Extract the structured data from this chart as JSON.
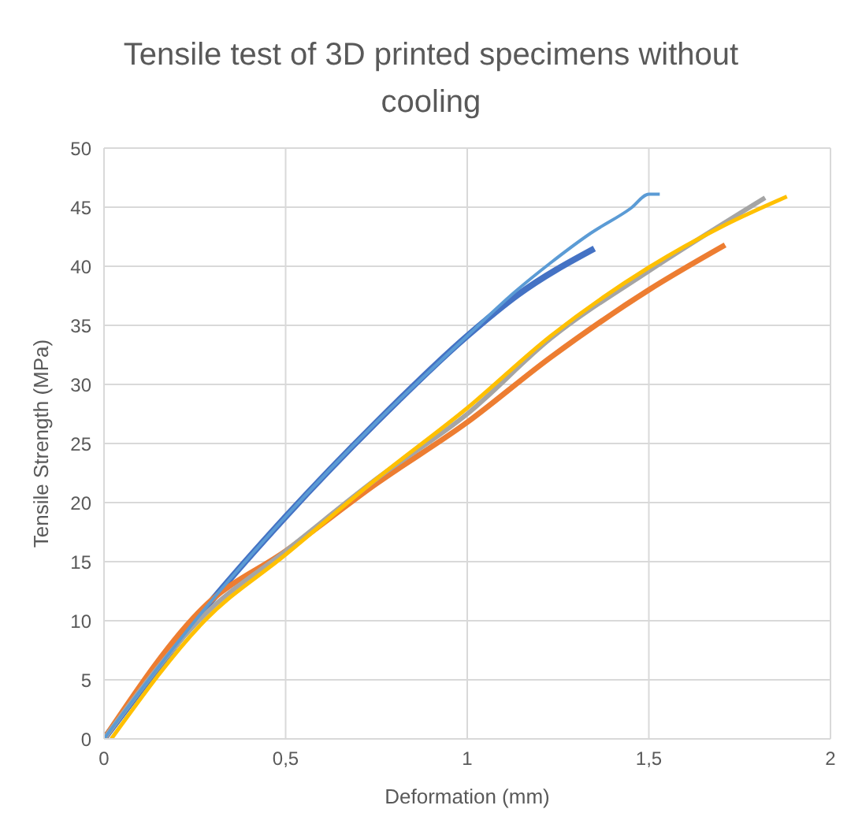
{
  "chart_data": {
    "type": "line",
    "title": "Tensile test of 3D printed specimens without cooling",
    "xlabel": "Deformation (mm)",
    "ylabel": "Tensile Strength (MPa)",
    "xlim": [
      0,
      2
    ],
    "xticks": [
      0,
      {
        "value": 0.5,
        "label": "0,5"
      },
      1,
      {
        "value": 1.5,
        "label": "1,5"
      },
      2
    ],
    "ylim": [
      0,
      50
    ],
    "yticks": [
      0,
      5,
      10,
      15,
      20,
      25,
      30,
      35,
      40,
      45,
      50
    ],
    "grid": true,
    "legend": false,
    "marker": "none",
    "line_style": "solid",
    "series": [
      {
        "color": "#4472c4",
        "x": [
          0,
          0.28,
          0.5,
          0.75,
          1.0,
          1.14,
          1.35
        ],
        "values": [
          0,
          11.1,
          18.8,
          26.8,
          34.1,
          37.6,
          41.5
        ]
      },
      {
        "color": "#ed7d31",
        "x": [
          0,
          0.28,
          0.5,
          0.75,
          1.0,
          1.23,
          1.5,
          1.71
        ],
        "values": [
          0,
          11.3,
          15.9,
          21.6,
          26.8,
          32.3,
          38.0,
          41.8
        ]
      },
      {
        "color": "#a5a5a5",
        "x": [
          0,
          0.28,
          0.5,
          0.75,
          1.0,
          1.23,
          1.5,
          1.82
        ],
        "values": [
          0,
          10.6,
          15.9,
          22.0,
          27.5,
          33.9,
          39.6,
          45.8
        ]
      },
      {
        "color": "#ffc000",
        "x": [
          0.02,
          0.28,
          0.5,
          0.75,
          1.0,
          1.23,
          1.5,
          1.71,
          1.88
        ],
        "values": [
          0,
          10.1,
          15.6,
          22.0,
          28.0,
          34.1,
          39.9,
          43.5,
          45.9
        ]
      },
      {
        "color": "#5b9bd5",
        "x": [
          0,
          0.28,
          0.5,
          0.75,
          1.0,
          1.13,
          1.23,
          1.34,
          1.45,
          1.5,
          1.53
        ],
        "values": [
          0,
          11.1,
          18.8,
          26.8,
          34.1,
          37.8,
          40.3,
          42.8,
          44.9,
          46.1,
          46.1
        ]
      }
    ]
  }
}
